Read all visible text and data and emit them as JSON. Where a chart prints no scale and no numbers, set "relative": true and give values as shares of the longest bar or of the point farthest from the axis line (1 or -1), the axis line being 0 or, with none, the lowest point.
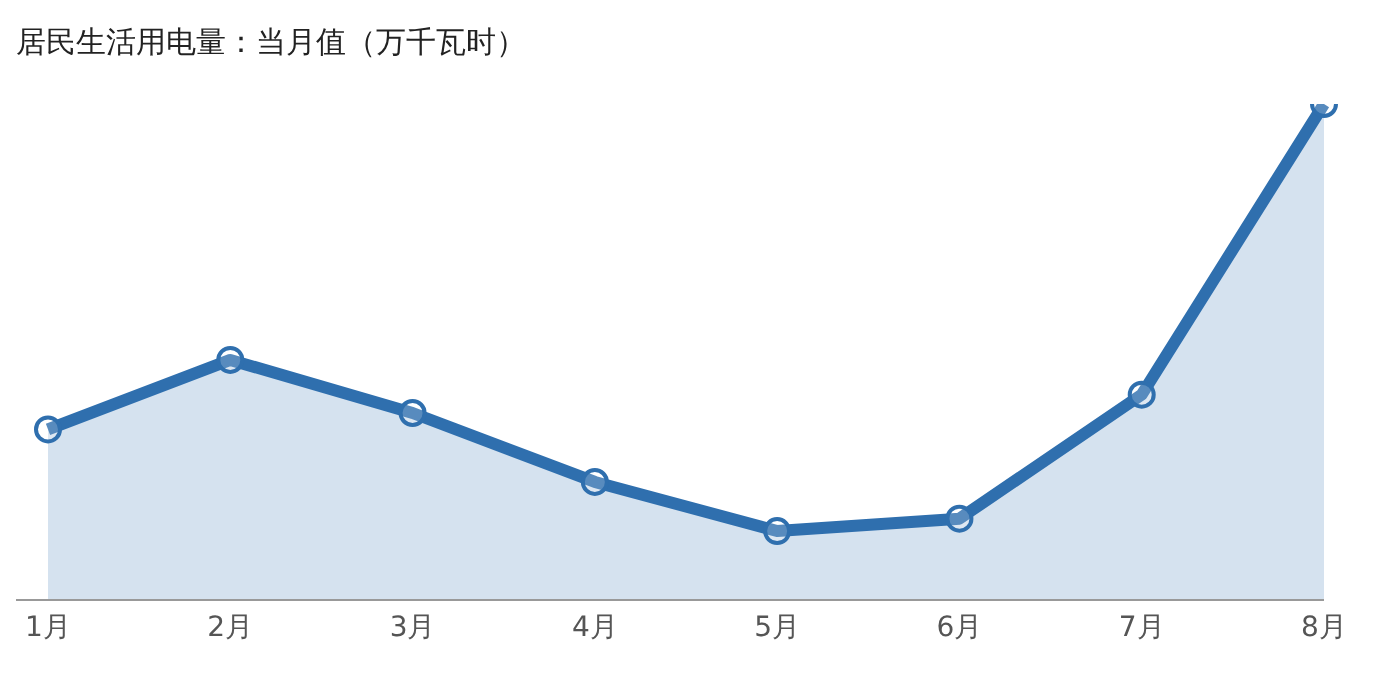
{
  "chart_data": {
    "type": "area",
    "title": "居民生活用电量：当月值（万千瓦时）",
    "categories": [
      "1月",
      "2月",
      "3月",
      "4月",
      "5月",
      "6月",
      "7月",
      "8月"
    ],
    "relative": true,
    "series": [
      {
        "color": "#2f6fae",
        "values": [
          0.344,
          0.484,
          0.377,
          0.238,
          0.139,
          0.164,
          0.414,
          1
        ]
      }
    ],
    "marker": "circle",
    "line_style": "solid"
  }
}
